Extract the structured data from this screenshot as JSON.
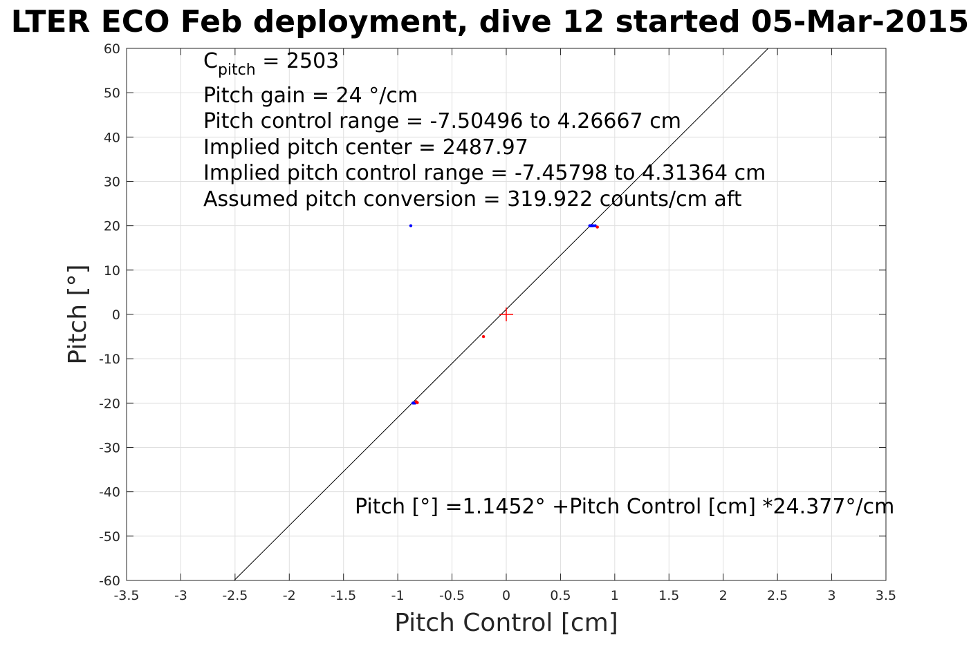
{
  "chart_data": {
    "type": "scatter",
    "title": "LTER ECO Feb deployment, dive 12 started 05-Mar-2015",
    "xlabel": "Pitch Control [cm]",
    "ylabel": "Pitch [°]",
    "xlim": [
      -3.5,
      3.5
    ],
    "ylim": [
      -60,
      60
    ],
    "xticks": [
      "-3.5",
      "-3",
      "-2.5",
      "-2",
      "-1.5",
      "-1",
      "-0.5",
      "0",
      "0.5",
      "1",
      "1.5",
      "2",
      "2.5",
      "3",
      "3.5"
    ],
    "yticks": [
      "60",
      "50",
      "40",
      "30",
      "20",
      "10",
      "0",
      "-10",
      "-20",
      "-30",
      "-40",
      "-50",
      "-60"
    ],
    "grid": true,
    "annotations": {
      "c_pitch_symbol": "C",
      "c_pitch_subscript": "pitch",
      "c_pitch_value": " = 2503",
      "lines": [
        "Pitch gain = 24 °/cm",
        "Pitch control range = -7.50496 to 4.26667 cm",
        "Implied pitch center = 2487.97",
        "Implied pitch control range = -7.45798 to 4.31364 cm",
        "Assumed pitch conversion = 319.922 counts/cm aft"
      ],
      "fit_equation": "Pitch [°] =1.1452° +Pitch Control [cm] *24.377°/cm"
    },
    "fit_line": {
      "intercept": 1.1452,
      "slope": 24.377,
      "color": "#000000"
    },
    "center_marker": {
      "x": 0,
      "y": 0,
      "color": "#ff0000"
    },
    "series": [
      {
        "color": "#0000ff",
        "points": [
          {
            "x": -0.88,
            "y": 20
          },
          {
            "x": 0.77,
            "y": 20
          },
          {
            "x": 0.78,
            "y": 20
          },
          {
            "x": 0.79,
            "y": 20
          },
          {
            "x": 0.8,
            "y": 20
          },
          {
            "x": 0.82,
            "y": 20
          },
          {
            "x": -0.86,
            "y": -20
          },
          {
            "x": -0.85,
            "y": -20
          },
          {
            "x": -0.84,
            "y": -20
          }
        ]
      },
      {
        "color": "#ff0000",
        "points": [
          {
            "x": 0.84,
            "y": 19.7
          },
          {
            "x": -0.21,
            "y": -5
          },
          {
            "x": -0.83,
            "y": -19.7
          },
          {
            "x": -0.82,
            "y": -19.9
          }
        ]
      }
    ]
  }
}
